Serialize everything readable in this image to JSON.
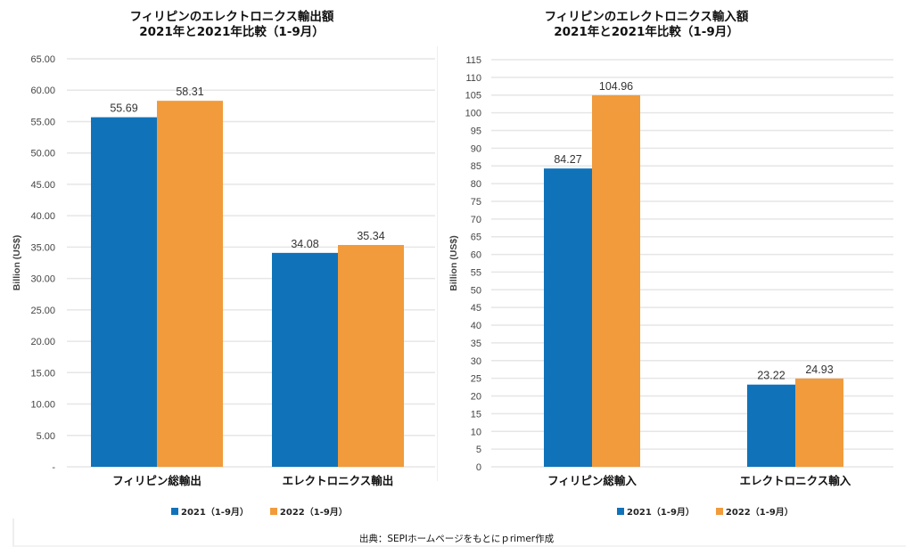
{
  "colors": {
    "series_2021": "#1073BA",
    "series_2022": "#F19B3C",
    "grid": "#e6e6e6",
    "label": "#333333"
  },
  "chart_data": [
    {
      "type": "bar",
      "title": "フィリピンのエレクトロニクス輸出額",
      "subtitle": "2021年と2021年比較（1-9月）",
      "xlabel": "",
      "ylabel": "Billion (US$)",
      "ylim": [
        0,
        65
      ],
      "y_ticks": [
        "-",
        "5.00",
        "10.00",
        "15.00",
        "20.00",
        "25.00",
        "30.00",
        "35.00",
        "40.00",
        "45.00",
        "50.00",
        "55.00",
        "60.00",
        "65.00"
      ],
      "y_tick_values": [
        0,
        5,
        10,
        15,
        20,
        25,
        30,
        35,
        40,
        45,
        50,
        55,
        60,
        65
      ],
      "grid": true,
      "categories": [
        "フィリピン総輸出",
        "エレクトロニクス輸出"
      ],
      "series": [
        {
          "name": "2021（1-9月）",
          "values": [
            55.69,
            34.08
          ],
          "labels": [
            "55.69",
            "34.08"
          ]
        },
        {
          "name": "2022（1-9月）",
          "values": [
            58.31,
            35.34
          ],
          "labels": [
            "58.31",
            "35.34"
          ]
        }
      ],
      "legend": "bottom"
    },
    {
      "type": "bar",
      "title": "フィリピンのエレクトロニクス輸入額",
      "subtitle": "2021年と2021年比較（1-9月）",
      "xlabel": "",
      "ylabel": "Billion (US$)",
      "ylim": [
        0,
        115
      ],
      "y_ticks": [
        "0",
        "5",
        "10",
        "15",
        "20",
        "25",
        "30",
        "35",
        "40",
        "45",
        "50",
        "55",
        "60",
        "65",
        "70",
        "75",
        "80",
        "85",
        "90",
        "95",
        "100",
        "105",
        "110",
        "115"
      ],
      "y_tick_values": [
        0,
        5,
        10,
        15,
        20,
        25,
        30,
        35,
        40,
        45,
        50,
        55,
        60,
        65,
        70,
        75,
        80,
        85,
        90,
        95,
        100,
        105,
        110,
        115
      ],
      "grid": true,
      "categories": [
        "フィリピン総輸入",
        "エレクトロニクス輸入"
      ],
      "series": [
        {
          "name": "2021（1-9月）",
          "values": [
            84.27,
            23.22
          ],
          "labels": [
            "84.27",
            "23.22"
          ]
        },
        {
          "name": "2022（1-9月）",
          "values": [
            104.96,
            24.93
          ],
          "labels": [
            "104.96",
            "24.93"
          ]
        }
      ],
      "legend": "bottom"
    }
  ],
  "source_note": "出典：SEPIホームページをもとにｐrimer作成"
}
